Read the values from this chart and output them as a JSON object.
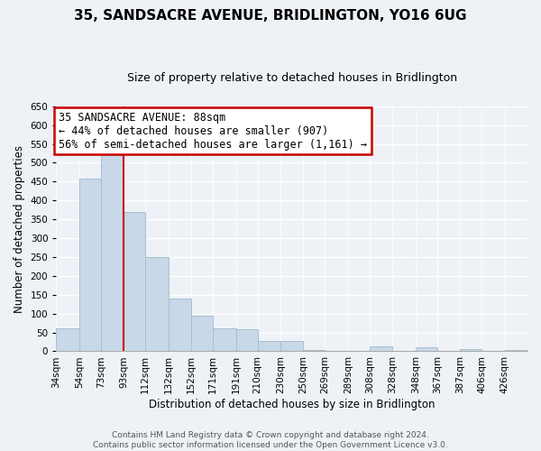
{
  "title": "35, SANDSACRE AVENUE, BRIDLINGTON, YO16 6UG",
  "subtitle": "Size of property relative to detached houses in Bridlington",
  "xlabel": "Distribution of detached houses by size in Bridlington",
  "ylabel": "Number of detached properties",
  "bar_labels": [
    "34sqm",
    "54sqm",
    "73sqm",
    "93sqm",
    "112sqm",
    "132sqm",
    "152sqm",
    "171sqm",
    "191sqm",
    "210sqm",
    "230sqm",
    "250sqm",
    "269sqm",
    "289sqm",
    "308sqm",
    "328sqm",
    "348sqm",
    "367sqm",
    "387sqm",
    "406sqm",
    "426sqm"
  ],
  "bar_values": [
    62,
    457,
    520,
    370,
    250,
    140,
    95,
    62,
    58,
    27,
    28,
    3,
    0,
    0,
    13,
    0,
    10,
    0,
    5,
    0,
    3
  ],
  "bar_color": "#c8d8e8",
  "bar_edge_color": "#a8bfcf",
  "ylim": [
    0,
    650
  ],
  "yticks": [
    0,
    50,
    100,
    150,
    200,
    250,
    300,
    350,
    400,
    450,
    500,
    550,
    600,
    650
  ],
  "annotation_line1": "35 SANDSACRE AVENUE: 88sqm",
  "annotation_line2": "← 44% of detached houses are smaller (907)",
  "annotation_line3": "56% of semi-detached houses are larger (1,161) →",
  "annotation_box_facecolor": "#ffffff",
  "annotation_box_edgecolor": "#cc0000",
  "red_line_color": "#cc0000",
  "footer_line1": "Contains HM Land Registry data © Crown copyright and database right 2024.",
  "footer_line2": "Contains public sector information licensed under the Open Government Licence v3.0.",
  "bin_edges": [
    34,
    54,
    73,
    93,
    112,
    132,
    152,
    171,
    191,
    210,
    230,
    250,
    269,
    289,
    308,
    328,
    348,
    367,
    387,
    406,
    426,
    446
  ],
  "background_color": "#eef2f6",
  "grid_color": "#ffffff",
  "title_fontsize": 11,
  "subtitle_fontsize": 9,
  "tick_fontsize": 7.5,
  "ylabel_fontsize": 8.5,
  "xlabel_fontsize": 8.5,
  "annotation_fontsize": 8.5,
  "footer_fontsize": 6.5
}
